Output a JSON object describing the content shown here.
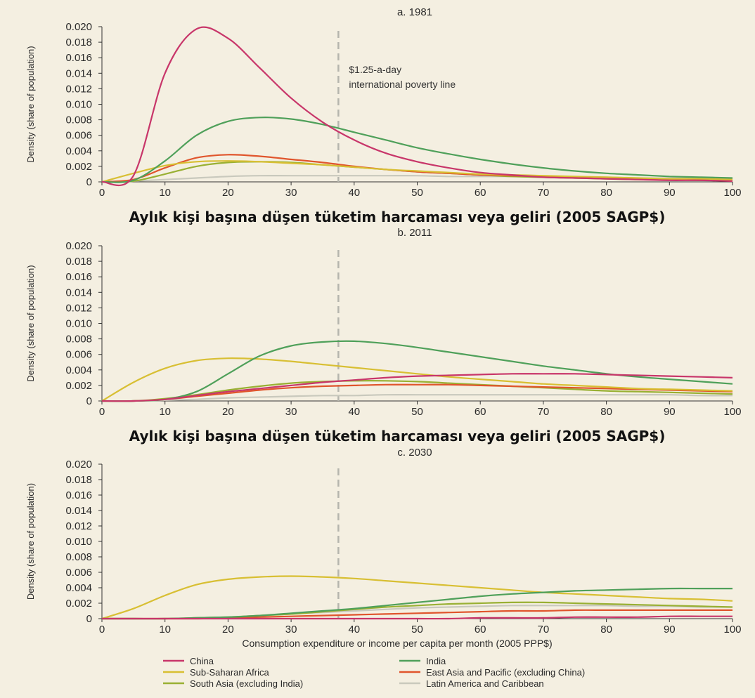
{
  "chart_data": [
    {
      "type": "line",
      "title": "a. 1981",
      "ylabel": "Density (share of population)",
      "xlabel": "Aylık kişi başına düşen tüketim harcaması veya geliri (2005 SAGP$)",
      "xlim": [
        0,
        100
      ],
      "ylim": [
        0,
        0.02
      ],
      "xticks": [
        "0",
        "10",
        "20",
        "30",
        "40",
        "50",
        "60",
        "70",
        "80",
        "90",
        "100"
      ],
      "yticks": [
        "0",
        "0.002",
        "0.004",
        "0.006",
        "0.008",
        "0.010",
        "0.012",
        "0.014",
        "0.016",
        "0.018",
        "0.020"
      ],
      "poverty_line_x": 37.5,
      "annotation": [
        "$1.25-a-day",
        "international poverty line"
      ],
      "x": [
        0,
        5,
        10,
        15,
        20,
        25,
        30,
        35,
        40,
        45,
        50,
        55,
        60,
        65,
        70,
        75,
        80,
        85,
        90,
        95,
        100
      ],
      "series": [
        {
          "name": "China",
          "color": "#c8366a",
          "values": [
            0,
            0.0008,
            0.014,
            0.0197,
            0.0185,
            0.0147,
            0.0108,
            0.0077,
            0.0054,
            0.0037,
            0.0026,
            0.0018,
            0.0012,
            0.0009,
            0.0006,
            0.0005,
            0.0004,
            0.0003,
            0.0002,
            0.0002,
            0.0001
          ]
        },
        {
          "name": "India",
          "color": "#4fa05a",
          "values": [
            0,
            0.0002,
            0.0027,
            0.006,
            0.0078,
            0.0083,
            0.0081,
            0.0074,
            0.0064,
            0.0054,
            0.0044,
            0.0036,
            0.0029,
            0.0023,
            0.0018,
            0.0014,
            0.0011,
            0.0009,
            0.0007,
            0.0006,
            0.0005
          ]
        },
        {
          "name": "Sub-Saharan Africa",
          "color": "#d8bf33",
          "values": [
            0,
            0.0011,
            0.0021,
            0.0026,
            0.0027,
            0.0026,
            0.0024,
            0.0022,
            0.0019,
            0.0016,
            0.0014,
            0.0012,
            0.001,
            0.0009,
            0.0008,
            0.0007,
            0.0006,
            0.0005,
            0.0004,
            0.0004,
            0.0003
          ]
        },
        {
          "name": "East Asia and Pacific (excluding China)",
          "color": "#e0552c",
          "values": [
            0,
            0.0003,
            0.0018,
            0.0031,
            0.0035,
            0.0033,
            0.0029,
            0.0025,
            0.002,
            0.0016,
            0.0013,
            0.0011,
            0.0009,
            0.0008,
            0.0007,
            0.0006,
            0.0005,
            0.0004,
            0.0003,
            0.0003,
            0.0003
          ]
        },
        {
          "name": "South Asia (excluding India)",
          "color": "#99b033",
          "values": [
            0,
            0.0001,
            0.001,
            0.002,
            0.0025,
            0.0026,
            0.0025,
            0.0022,
            0.0019,
            0.0016,
            0.0013,
            0.0011,
            0.0009,
            0.0007,
            0.0006,
            0.0005,
            0.0004,
            0.0003,
            0.0003,
            0.0002,
            0.0002
          ]
        },
        {
          "name": "Latin America and Caribbean",
          "color": "#c9c9bd",
          "values": [
            0,
            0.0001,
            0.0003,
            0.0005,
            0.0007,
            0.0008,
            0.0008,
            0.0008,
            0.0008,
            0.0008,
            0.0008,
            0.0007,
            0.0007,
            0.0007,
            0.0006,
            0.0006,
            0.0006,
            0.0005,
            0.0005,
            0.0005,
            0.0004
          ]
        }
      ]
    },
    {
      "type": "line",
      "title": "b. 2011",
      "ylabel": "Density (share of population)",
      "xlabel": "Aylık kişi başına düşen tüketim harcaması veya geliri (2005 SAGP$)",
      "xlim": [
        0,
        100
      ],
      "ylim": [
        0,
        0.02
      ],
      "xticks": [
        "0",
        "10",
        "20",
        "30",
        "40",
        "50",
        "60",
        "70",
        "80",
        "90",
        "100"
      ],
      "yticks": [
        "0",
        "0.002",
        "0.004",
        "0.006",
        "0.008",
        "0.010",
        "0.012",
        "0.014",
        "0.016",
        "0.018",
        "0.020"
      ],
      "poverty_line_x": 37.5,
      "x": [
        0,
        5,
        10,
        15,
        20,
        25,
        30,
        35,
        40,
        45,
        50,
        55,
        60,
        65,
        70,
        75,
        80,
        85,
        90,
        95,
        100
      ],
      "series": [
        {
          "name": "China",
          "color": "#c8366a",
          "values": [
            0,
            0.0,
            0.0002,
            0.0007,
            0.0012,
            0.0016,
            0.002,
            0.0024,
            0.0027,
            0.003,
            0.0032,
            0.0033,
            0.0034,
            0.0035,
            0.0035,
            0.0035,
            0.0034,
            0.0033,
            0.0032,
            0.0031,
            0.003
          ]
        },
        {
          "name": "India",
          "color": "#4fa05a",
          "values": [
            0,
            0.0,
            0.0002,
            0.0012,
            0.0035,
            0.0058,
            0.0071,
            0.0076,
            0.0077,
            0.0074,
            0.0069,
            0.0063,
            0.0057,
            0.0051,
            0.0045,
            0.004,
            0.0035,
            0.0031,
            0.0028,
            0.0025,
            0.0022
          ]
        },
        {
          "name": "Sub-Saharan Africa",
          "color": "#d8bf33",
          "values": [
            0,
            0.0024,
            0.0042,
            0.0052,
            0.0055,
            0.0054,
            0.0051,
            0.0047,
            0.0043,
            0.0039,
            0.0035,
            0.0031,
            0.0028,
            0.0025,
            0.0022,
            0.002,
            0.0018,
            0.0016,
            0.0015,
            0.0014,
            0.0013
          ]
        },
        {
          "name": "East Asia and Pacific (excluding China)",
          "color": "#e0552c",
          "values": [
            0,
            0.0,
            0.0002,
            0.0006,
            0.001,
            0.0014,
            0.0017,
            0.0019,
            0.002,
            0.0021,
            0.0021,
            0.0021,
            0.002,
            0.0019,
            0.0018,
            0.0017,
            0.0016,
            0.0015,
            0.0014,
            0.0013,
            0.0012
          ]
        },
        {
          "name": "South Asia (excluding India)",
          "color": "#99b033",
          "values": [
            0,
            0.0,
            0.0003,
            0.0008,
            0.0014,
            0.0019,
            0.0023,
            0.0025,
            0.0026,
            0.0026,
            0.0025,
            0.0023,
            0.0021,
            0.0019,
            0.0017,
            0.0015,
            0.0013,
            0.0012,
            0.0011,
            0.001,
            0.0009
          ]
        },
        {
          "name": "Latin America and Caribbean",
          "color": "#c9c9bd",
          "values": [
            0,
            0.0,
            0.0001,
            0.0002,
            0.0004,
            0.0005,
            0.0006,
            0.0007,
            0.0007,
            0.0008,
            0.0008,
            0.0008,
            0.0008,
            0.0008,
            0.0008,
            0.0008,
            0.0008,
            0.0008,
            0.0008,
            0.0007,
            0.0007
          ]
        }
      ]
    },
    {
      "type": "line",
      "title": "c. 2030",
      "ylabel": "Density (share of population)",
      "xlabel": "Consumption expenditure or income per capita per month (2005 PPP$)",
      "xlim": [
        0,
        100
      ],
      "ylim": [
        0,
        0.02
      ],
      "xticks": [
        "0",
        "10",
        "20",
        "30",
        "40",
        "50",
        "60",
        "70",
        "80",
        "90",
        "100"
      ],
      "yticks": [
        "0",
        "0.002",
        "0.004",
        "0.006",
        "0.008",
        "0.010",
        "0.012",
        "0.014",
        "0.016",
        "0.018",
        "0.020"
      ],
      "poverty_line_x": 37.5,
      "x": [
        0,
        5,
        10,
        15,
        20,
        25,
        30,
        35,
        40,
        45,
        50,
        55,
        60,
        65,
        70,
        75,
        80,
        85,
        90,
        95,
        100
      ],
      "series": [
        {
          "name": "China",
          "color": "#c8366a",
          "values": [
            0,
            0,
            0,
            0,
            0,
            0,
            0,
            0,
            0,
            0,
            0,
            0,
            0.0001,
            0.0001,
            0.0001,
            0.0002,
            0.0002,
            0.0002,
            0.0003,
            0.0003,
            0.0003
          ]
        },
        {
          "name": "India",
          "color": "#4fa05a",
          "values": [
            0,
            0,
            0,
            0.0001,
            0.0002,
            0.0004,
            0.0007,
            0.001,
            0.0013,
            0.0017,
            0.0021,
            0.0025,
            0.0029,
            0.0032,
            0.0034,
            0.0036,
            0.0037,
            0.0038,
            0.0039,
            0.0039,
            0.0039
          ]
        },
        {
          "name": "Sub-Saharan Africa",
          "color": "#d8bf33",
          "values": [
            0,
            0.0013,
            0.003,
            0.0044,
            0.0051,
            0.0054,
            0.0055,
            0.0054,
            0.0052,
            0.0049,
            0.0046,
            0.0043,
            0.004,
            0.0037,
            0.0034,
            0.0032,
            0.003,
            0.0028,
            0.0026,
            0.0025,
            0.0023
          ]
        },
        {
          "name": "East Asia and Pacific (excluding China)",
          "color": "#e0552c",
          "values": [
            0,
            0,
            0,
            0,
            0.0001,
            0.0002,
            0.0003,
            0.0004,
            0.0005,
            0.0006,
            0.0007,
            0.0008,
            0.0009,
            0.001,
            0.001,
            0.0011,
            0.0011,
            0.0011,
            0.0011,
            0.0011,
            0.0011
          ]
        },
        {
          "name": "South Asia (excluding India)",
          "color": "#99b033",
          "values": [
            0,
            0,
            0,
            0.0001,
            0.0002,
            0.0004,
            0.0006,
            0.0009,
            0.0012,
            0.0015,
            0.0017,
            0.0019,
            0.002,
            0.0021,
            0.0021,
            0.002,
            0.0019,
            0.0018,
            0.0017,
            0.0016,
            0.0015
          ]
        },
        {
          "name": "Latin America and Caribbean",
          "color": "#c9c9bd",
          "values": [
            0,
            0,
            0,
            0.0001,
            0.0002,
            0.0004,
            0.0006,
            0.0008,
            0.001,
            0.0012,
            0.0014,
            0.0015,
            0.0016,
            0.0017,
            0.0017,
            0.0017,
            0.0017,
            0.0016,
            0.0016,
            0.0015,
            0.0015
          ]
        }
      ]
    }
  ],
  "legend": [
    {
      "name": "China",
      "color": "#c8366a"
    },
    {
      "name": "India",
      "color": "#4fa05a"
    },
    {
      "name": "Sub-Saharan Africa",
      "color": "#d8bf33"
    },
    {
      "name": "East Asia and Pacific (excluding China)",
      "color": "#e0552c"
    },
    {
      "name": "South Asia (excluding India)",
      "color": "#99b033"
    },
    {
      "name": "Latin America and Caribbean",
      "color": "#c9c9bd"
    }
  ]
}
